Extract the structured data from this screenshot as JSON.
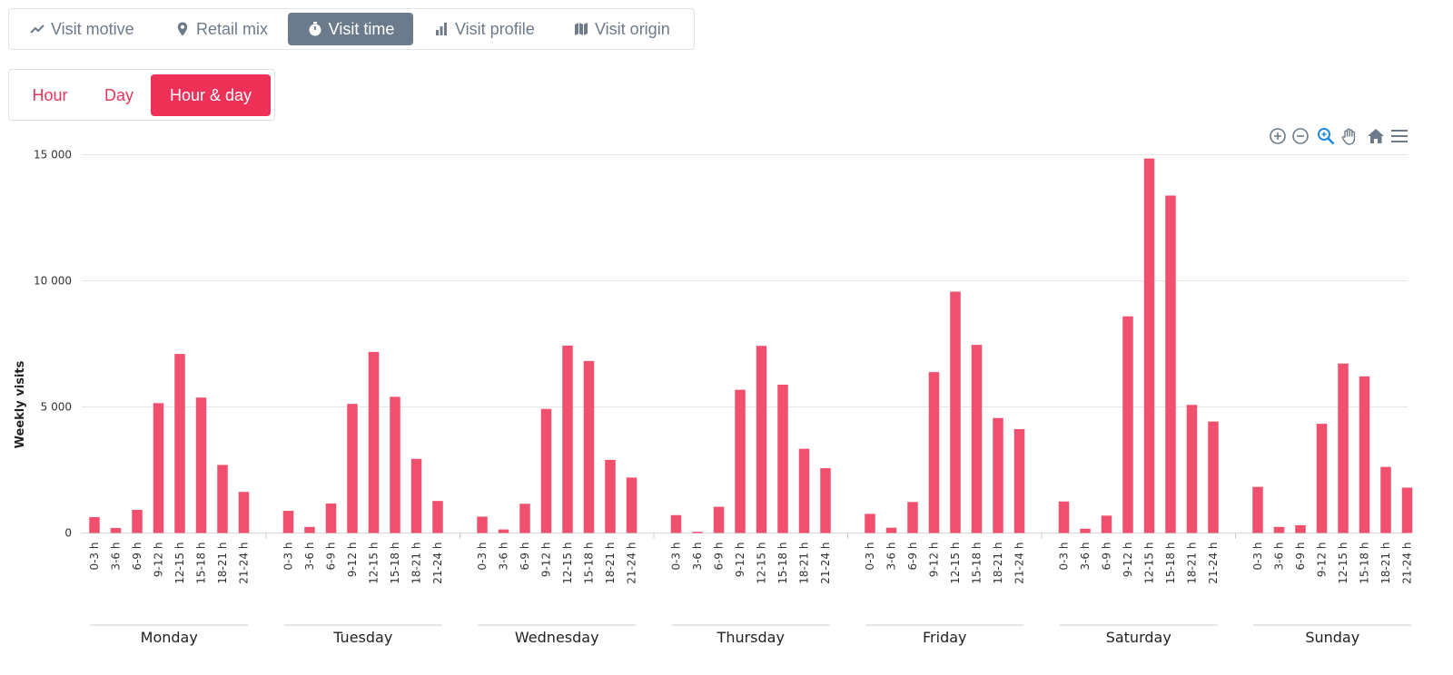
{
  "tabs": [
    {
      "label": "Visit motive",
      "icon": "trend-line-icon"
    },
    {
      "label": "Retail mix",
      "icon": "map-pin-icon"
    },
    {
      "label": "Visit time",
      "icon": "stopwatch-icon"
    },
    {
      "label": "Visit profile",
      "icon": "bar-chart-icon"
    },
    {
      "label": "Visit origin",
      "icon": "map-icon"
    }
  ],
  "active_tab": "Visit time",
  "modes": [
    {
      "label": "Hour"
    },
    {
      "label": "Day"
    },
    {
      "label": "Hour & day"
    }
  ],
  "active_mode": "Hour & day",
  "toolbar": [
    "zoom-in-icon",
    "zoom-out-icon",
    "selection-zoom-icon",
    "pan-hand-icon",
    "reset-home-icon",
    "menu-icon"
  ],
  "colors": {
    "bar": "#f0506e",
    "accent": "#ef3057",
    "tab_active": "#6b7b8c"
  },
  "chart_data": {
    "type": "bar",
    "ylabel": "Weekly visits",
    "ylim": [
      0,
      15000
    ],
    "yticks": [
      0,
      5000,
      10000,
      15000
    ],
    "ytick_labels": [
      "0",
      "5 000",
      "10 000",
      "15 000"
    ],
    "grid": true,
    "hours": [
      "0-3 h",
      "3-6 h",
      "6-9 h",
      "9-12 h",
      "12-15 h",
      "15-18 h",
      "18-21 h",
      "21-24 h"
    ],
    "days": [
      {
        "name": "Monday",
        "values": [
          630,
          200,
          920,
          5150,
          7100,
          5370,
          2700,
          1630
        ]
      },
      {
        "name": "Tuesday",
        "values": [
          880,
          240,
          1170,
          5120,
          7180,
          5400,
          2940,
          1270
        ]
      },
      {
        "name": "Wednesday",
        "values": [
          650,
          140,
          1160,
          4920,
          7430,
          6820,
          2900,
          2200
        ]
      },
      {
        "name": "Thursday",
        "values": [
          710,
          50,
          1040,
          5680,
          7420,
          5880,
          3340,
          2570
        ]
      },
      {
        "name": "Friday",
        "values": [
          760,
          210,
          1230,
          6380,
          9570,
          7460,
          4560,
          4120
        ]
      },
      {
        "name": "Saturday",
        "values": [
          1250,
          170,
          690,
          8590,
          14850,
          13380,
          5080,
          4420
        ]
      },
      {
        "name": "Sunday",
        "values": [
          1830,
          240,
          310,
          4330,
          6720,
          6210,
          2620,
          1800
        ]
      }
    ]
  }
}
